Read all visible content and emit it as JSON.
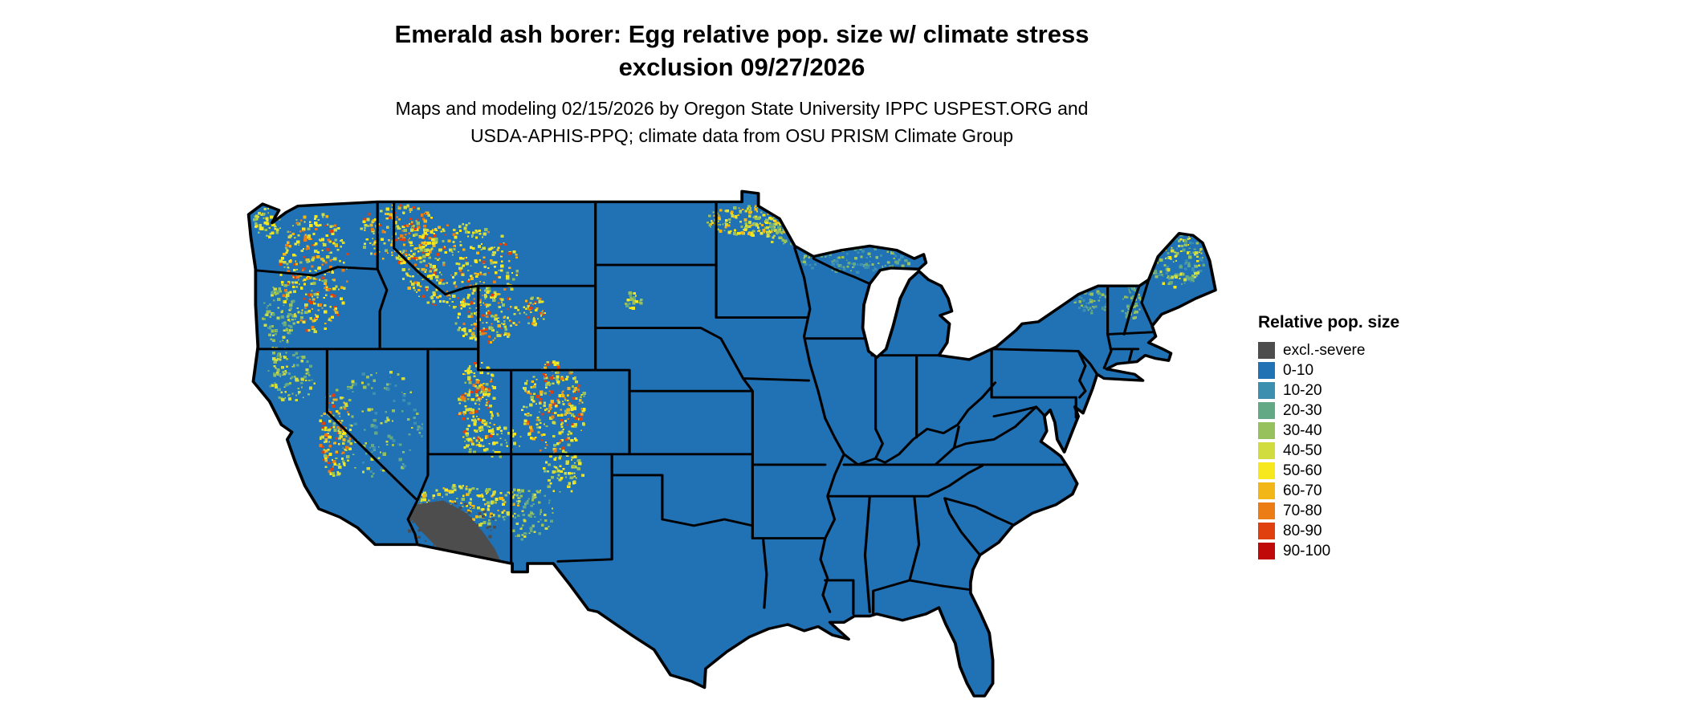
{
  "title": {
    "line1": "Emerald ash borer: Egg relative pop. size w/ climate stress",
    "line2": "exclusion 09/27/2026"
  },
  "subtitle": {
    "line1": "Maps and modeling 02/15/2026 by Oregon State University IPPC USPEST.ORG and",
    "line2": "USDA-APHIS-PPQ; climate data from OSU PRISM Climate Group"
  },
  "legend": {
    "title": "Relative pop. size",
    "items": [
      {
        "label": "excl.-severe",
        "color": "#4D4D4D"
      },
      {
        "label": "0-10",
        "color": "#2171B5"
      },
      {
        "label": "10-20",
        "color": "#3D8FB0"
      },
      {
        "label": "20-30",
        "color": "#63A985"
      },
      {
        "label": "30-40",
        "color": "#97C15C"
      },
      {
        "label": "40-50",
        "color": "#D1DC3E"
      },
      {
        "label": "50-60",
        "color": "#F7E81E"
      },
      {
        "label": "60-70",
        "color": "#F2B617"
      },
      {
        "label": "70-80",
        "color": "#EC7D14"
      },
      {
        "label": "80-90",
        "color": "#E0400E"
      },
      {
        "label": "90-100",
        "color": "#C00A0A"
      }
    ]
  },
  "map": {
    "region": "Contiguous United States",
    "base_color": "#2171B5",
    "border_color": "#000000",
    "background_color": "#FFFFFF"
  }
}
